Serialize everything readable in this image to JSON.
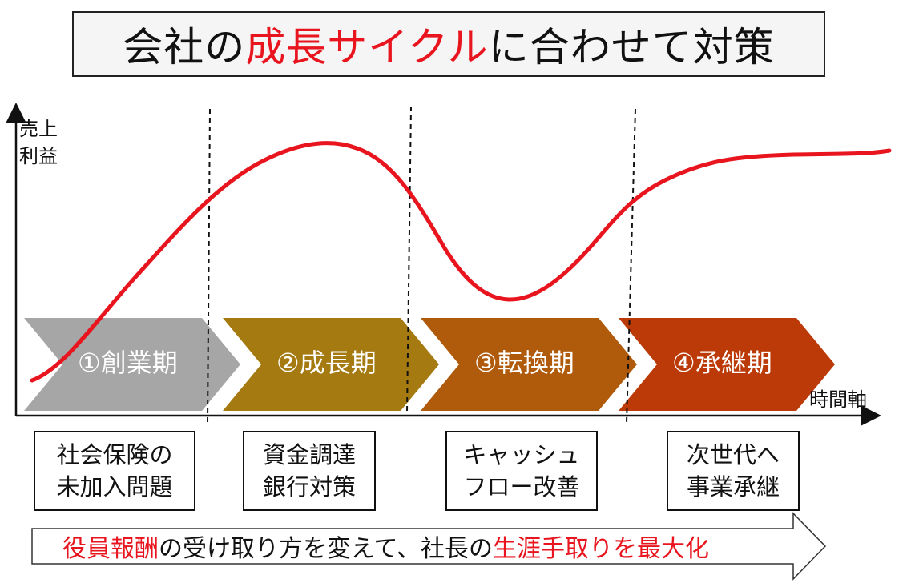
{
  "title": {
    "part1": "会社の",
    "highlight": "成長サイクル",
    "part2": "に合わせて対策"
  },
  "axis": {
    "y_line1": "売上",
    "y_line2": "利益",
    "x_label": "時間軸"
  },
  "phases": [
    {
      "label": "①創業期",
      "color": "#a6a6a6"
    },
    {
      "label": "②成長期",
      "color": "#a57a11"
    },
    {
      "label": "③転換期",
      "color": "#b05a0c"
    },
    {
      "label": "④承継期",
      "color": "#bb3a08"
    }
  ],
  "notes": [
    {
      "line1": "社会保険の",
      "line2": "未加入問題"
    },
    {
      "line1": "資金調達",
      "line2": "銀行対策"
    },
    {
      "line1": "キャッシュ",
      "line2": "フロー改善"
    },
    {
      "line1": "次世代へ",
      "line2": "事業承継"
    }
  ],
  "bottom": {
    "highlight1": "役員報酬",
    "middle": "の受け取り方を変えて、社長の",
    "highlight2": "生涯手取りを最大化"
  },
  "colors": {
    "curve": "#e8141e",
    "accent_text": "#e8141e"
  }
}
